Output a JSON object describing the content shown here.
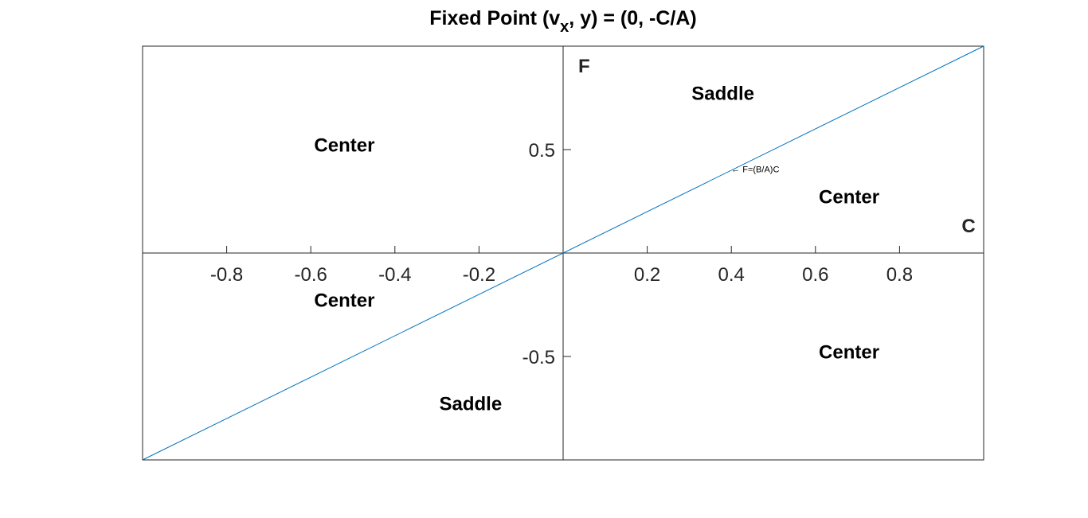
{
  "chart_data": {
    "type": "line",
    "title": {
      "prefix": "Fixed Point (v",
      "subscript": "x",
      "suffix": ", y) = (0, -C/A)"
    },
    "xlabel": "C",
    "ylabel": "F",
    "xlim": [
      -1,
      1
    ],
    "ylim": [
      -1,
      1
    ],
    "x_ticks": [
      -0.8,
      -0.6,
      -0.4,
      -0.2,
      0.2,
      0.4,
      0.6,
      0.8
    ],
    "x_tick_labels": [
      "-0.8",
      "-0.6",
      "-0.4",
      "-0.2",
      "0.2",
      "0.4",
      "0.6",
      "0.8"
    ],
    "y_ticks": [
      0.5,
      -0.5
    ],
    "y_tick_labels": [
      "0.5",
      "-0.5"
    ],
    "grid": false,
    "axes_through_origin": true,
    "series": [
      {
        "x": [
          -1,
          1
        ],
        "y": [
          -1,
          1
        ],
        "color": "#0072BD"
      }
    ],
    "region_labels": [
      {
        "text": "Center",
        "x": -0.52,
        "y": 0.49
      },
      {
        "text": "Saddle",
        "x": 0.38,
        "y": 0.74
      },
      {
        "text": "Center",
        "x": 0.68,
        "y": 0.24
      },
      {
        "text": "Center",
        "x": -0.52,
        "y": -0.26
      },
      {
        "text": "Center",
        "x": 0.68,
        "y": -0.51
      },
      {
        "text": "Saddle",
        "x": -0.22,
        "y": -0.76
      }
    ],
    "annotations": [
      {
        "text": "← F=(B/A)C",
        "x": 0.4,
        "y": 0.39
      }
    ]
  },
  "colors": {
    "axis": "#262626",
    "line": "#0072BD",
    "background": "#ffffff"
  }
}
